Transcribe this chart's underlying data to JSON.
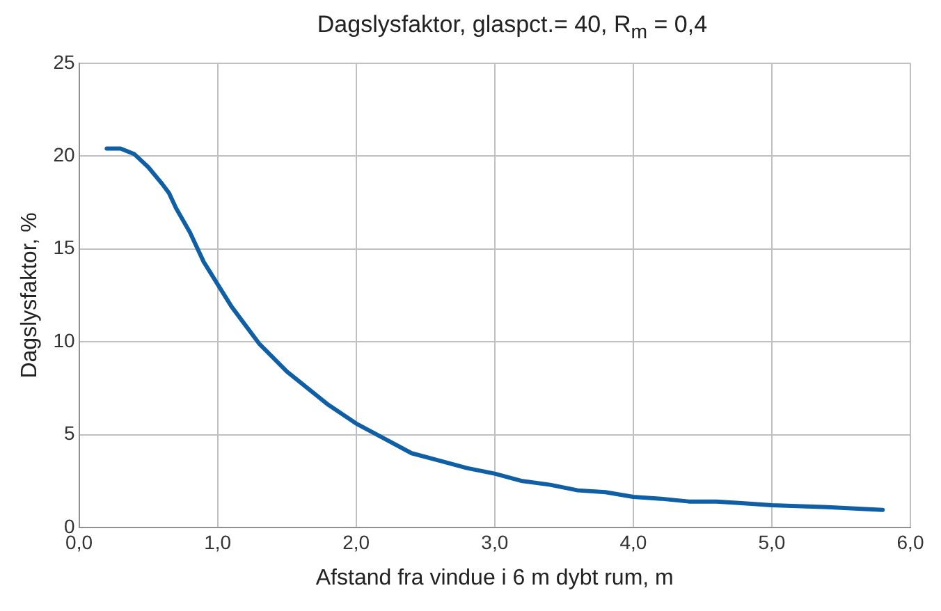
{
  "chart_data": {
    "type": "line",
    "title": "Dagslysfaktor, glaspct.= 40, R$_{m}$ = 0,4",
    "xlabel": "Afstand fra vindue i 6 m dybt rum, m",
    "ylabel": "Dagslysfaktor, %",
    "x": [
      0.2,
      0.3,
      0.4,
      0.5,
      0.6,
      0.65,
      0.7,
      0.8,
      0.9,
      1.0,
      1.1,
      1.2,
      1.3,
      1.5,
      1.8,
      2.0,
      2.2,
      2.4,
      2.6,
      2.8,
      3.0,
      3.2,
      3.4,
      3.6,
      3.8,
      4.0,
      4.2,
      4.4,
      4.6,
      4.8,
      5.0,
      5.4,
      5.8
    ],
    "series": [
      {
        "color": "#0f5fa6",
        "values": [
          20.4,
          20.4,
          20.1,
          19.4,
          18.5,
          18.0,
          17.2,
          15.9,
          14.3,
          13.1,
          11.9,
          10.9,
          9.9,
          8.4,
          6.6,
          5.6,
          4.8,
          4.0,
          3.6,
          3.2,
          2.9,
          2.5,
          2.3,
          2.0,
          1.9,
          1.65,
          1.55,
          1.4,
          1.4,
          1.3,
          1.2,
          1.1,
          0.95
        ]
      }
    ],
    "xlim": [
      0,
      6
    ],
    "xticks": [
      {
        "value": 0,
        "label": "0,0"
      },
      {
        "value": 1,
        "label": "1,0"
      },
      {
        "value": 2,
        "label": "2,0"
      },
      {
        "value": 3,
        "label": "3,0"
      },
      {
        "value": 4,
        "label": "4,0"
      },
      {
        "value": 5,
        "label": "5,0"
      },
      {
        "value": 6,
        "label": "6,0"
      }
    ],
    "ylim": [
      0,
      25
    ],
    "yticks": [
      0,
      5,
      10,
      15,
      20,
      25
    ],
    "grid": true,
    "legend": false,
    "marker": "none",
    "line_style": "solid"
  }
}
